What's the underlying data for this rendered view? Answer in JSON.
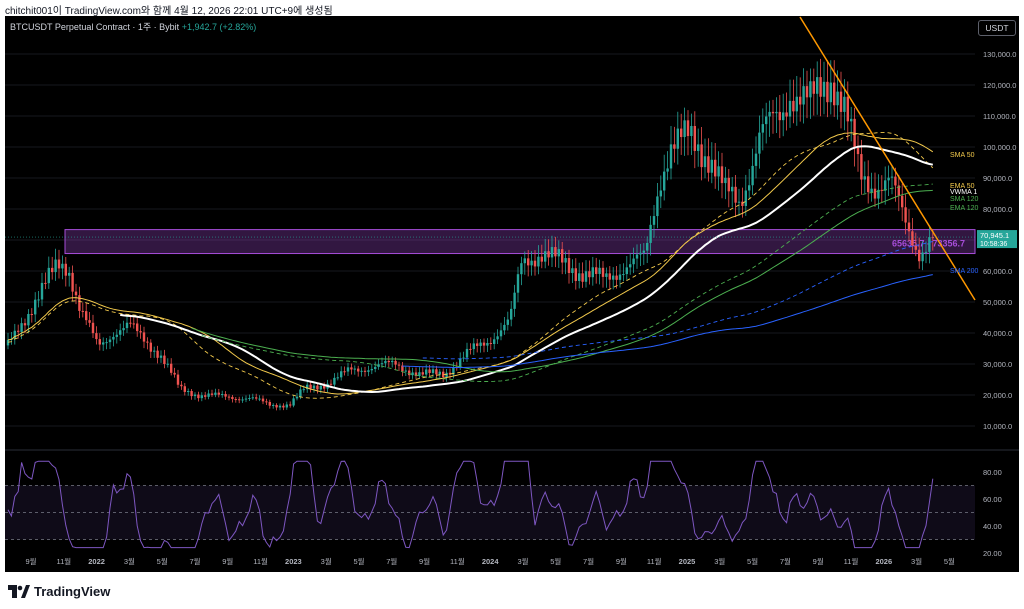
{
  "topbar": {
    "text": "chitchit001이 TradingView.com와 함께 4월 12, 2026 22:01 UTC+9에 생성됨"
  },
  "header": {
    "symbol": "BTCUSDT Perpetual Contract · 1주 · Bybit",
    "change": "+1,942.7 (+2.82%)"
  },
  "currency_button": "USDT",
  "price_axis": [
    "130,000.0",
    "120,000.0",
    "110,000.0",
    "100,000.0",
    "90,000.0",
    "80,000.0",
    "70,000.0",
    "60,000.0",
    "50,000.0",
    "40,000.0",
    "30,000.0",
    "20,000.0",
    "10,000.0"
  ],
  "rsi_axis": [
    "80.00",
    "60.00",
    "40.00",
    "20.00"
  ],
  "time_axis": [
    "9월",
    "11월",
    "2022",
    "3월",
    "5월",
    "7월",
    "9월",
    "11월",
    "2023",
    "3월",
    "5월",
    "7월",
    "9월",
    "11월",
    "2024",
    "3월",
    "5월",
    "7월",
    "9월",
    "11월",
    "2025",
    "3월",
    "5월",
    "7월",
    "9월",
    "11월",
    "2026",
    "3월",
    "5월"
  ],
  "indicator_labels": [
    {
      "text": "SMA 50",
      "color": "#f2c94c"
    },
    {
      "text": "EMA 50",
      "color": "#f2c94c"
    },
    {
      "text": "VWMA 1",
      "color": "#ffffff"
    },
    {
      "text": "SMA 120",
      "color": "#4caf50"
    },
    {
      "text": "EMA 120",
      "color": "#4caf50"
    }
  ],
  "price_tag": {
    "price": "70,945.1",
    "countdown": "10:58:36",
    "color": "#26a69a"
  },
  "box_label": "65635.7 - 73356.7",
  "sma200_label": "SMA 200",
  "footer": {
    "brand": "TradingView"
  },
  "colors": {
    "up": "#26a69a",
    "down": "#ef5350",
    "box": "#a64dd8",
    "trendline": "#ff9800",
    "rsi": "#7e57c2",
    "sma50": "#f2c94c",
    "vwma": "#ffffff",
    "green": "#4caf50",
    "blue": "#2962ff"
  }
}
